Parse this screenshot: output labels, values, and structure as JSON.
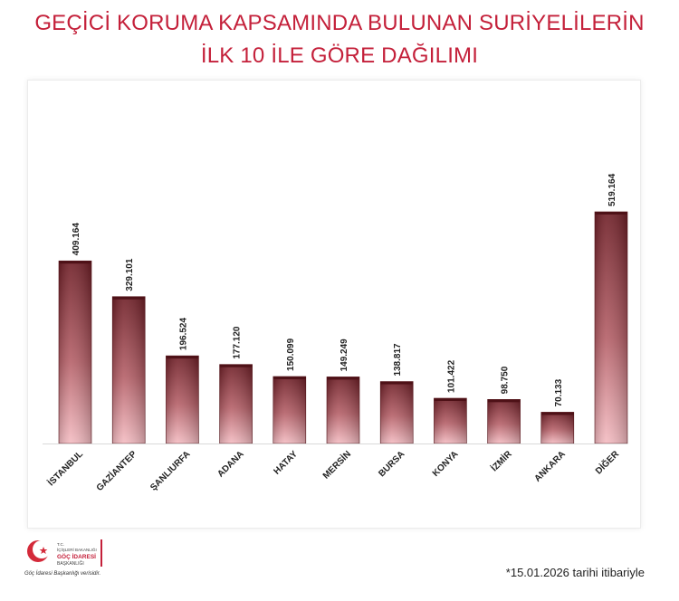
{
  "title": {
    "line1": "GEÇİCİ KORUMA KAPSAMINDA BULUNAN SURİYELİLERİN",
    "line2": "İLK 10 İLE GÖRE DAĞILIMI"
  },
  "footnote": "*15.01.2026 tarihi itibariyle",
  "logo": {
    "line1": "T.C.",
    "line2": "İÇİŞLERİ BAKANLIĞI",
    "line3": "GÖÇ İDARESİ",
    "line4": "BAŞKANLIĞI",
    "tagline": "Göç İdaresi Başkanlığı verisidir."
  },
  "colors": {
    "title": "#c4203a",
    "bar_top": "#6e1e26",
    "bar_bottom": "#f4bcc2"
  },
  "chart_data": {
    "type": "bar",
    "categories": [
      "İSTANBUL",
      "GAZİANTEP",
      "ŞANLIURFA",
      "ADANA",
      "HATAY",
      "MERSİN",
      "BURSA",
      "KONYA",
      "İZMİR",
      "ANKARA",
      "DİĞER"
    ],
    "value_labels": [
      "409.164",
      "329.101",
      "196.524",
      "177.120",
      "150.099",
      "149.249",
      "138.817",
      "101.422",
      "98.750",
      "70.133",
      "519.164"
    ],
    "values": [
      409164,
      329101,
      196524,
      177120,
      150099,
      149249,
      138817,
      101422,
      98750,
      70133,
      519164
    ],
    "ylim": [
      0,
      519164
    ],
    "grid": false,
    "legend": "none"
  }
}
